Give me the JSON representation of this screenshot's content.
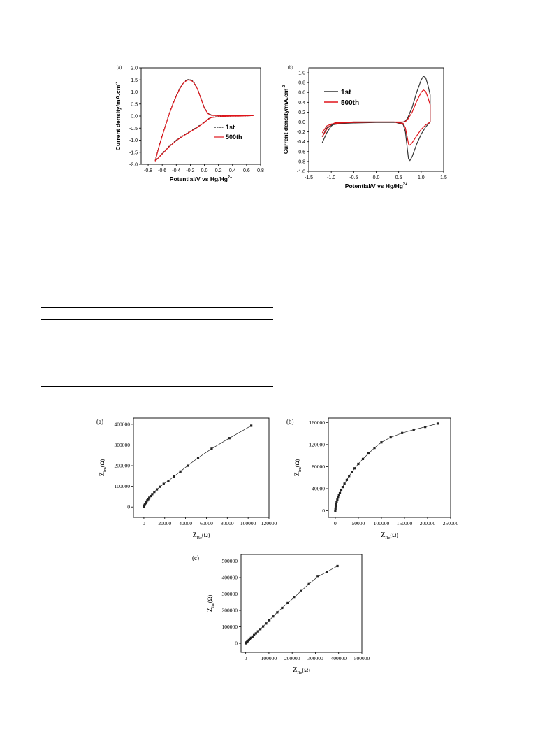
{
  "chart_data": [
    {
      "id": "cv_a",
      "type": "line",
      "panel_label": "(a)",
      "xlabel": "Potential/V vs Hg/Hg",
      "xlabel_sup": "2+",
      "ylabel": "Current density/mA.cm",
      "ylabel_sup": "-2",
      "xlim": [
        -0.9,
        0.8
      ],
      "ylim": [
        -2.0,
        2.0
      ],
      "x_ticks": [
        -0.8,
        -0.6,
        -0.4,
        -0.2,
        0.0,
        0.2,
        0.4,
        0.6,
        0.8
      ],
      "x_tick_labels": [
        "-0.8",
        "-0.6",
        "-0.4",
        "-0.2",
        "0.0",
        "0.2",
        "0.4",
        "0.6",
        "0.8"
      ],
      "y_ticks": [
        -2.0,
        -1.5,
        -1.0,
        -0.5,
        0.0,
        0.5,
        1.0,
        1.5,
        2.0
      ],
      "y_tick_labels": [
        "-2.0",
        "-1.5",
        "-1.0",
        "-0.5",
        "0.0",
        "0.5",
        "1.0",
        "1.5",
        "2.0"
      ],
      "legend_position": "right-middle",
      "series": [
        {
          "name": "1st",
          "color": "#222222",
          "dash": "2,1.5",
          "x": [
            -0.7,
            -0.65,
            -0.6,
            -0.55,
            -0.5,
            -0.45,
            -0.4,
            -0.35,
            -0.3,
            -0.25,
            -0.22,
            -0.18,
            -0.15,
            -0.1,
            -0.05,
            0.0,
            0.05,
            0.1,
            0.2,
            0.3,
            0.4,
            0.5,
            0.6,
            0.7,
            0.6,
            0.5,
            0.4,
            0.3,
            0.2,
            0.1,
            0.05,
            0.0,
            -0.05,
            -0.1,
            -0.2,
            -0.3,
            -0.4,
            -0.5,
            -0.6,
            -0.7
          ],
          "y": [
            -1.85,
            -1.3,
            -0.8,
            -0.35,
            0.1,
            0.5,
            0.85,
            1.15,
            1.38,
            1.5,
            1.52,
            1.48,
            1.4,
            1.15,
            0.75,
            0.35,
            0.12,
            0.04,
            0.02,
            0.02,
            0.02,
            0.02,
            0.02,
            0.02,
            0.01,
            0.0,
            0.0,
            -0.01,
            -0.02,
            -0.05,
            -0.12,
            -0.25,
            -0.35,
            -0.45,
            -0.63,
            -0.8,
            -1.0,
            -1.25,
            -1.55,
            -1.85
          ]
        },
        {
          "name": "500th",
          "color": "#e0141a",
          "dash": "",
          "x": [
            -0.7,
            -0.65,
            -0.6,
            -0.55,
            -0.5,
            -0.45,
            -0.4,
            -0.35,
            -0.3,
            -0.25,
            -0.22,
            -0.18,
            -0.15,
            -0.1,
            -0.05,
            0.0,
            0.05,
            0.1,
            0.2,
            0.3,
            0.4,
            0.5,
            0.6,
            0.7,
            0.6,
            0.5,
            0.4,
            0.3,
            0.2,
            0.1,
            0.05,
            0.0,
            -0.05,
            -0.1,
            -0.2,
            -0.3,
            -0.4,
            -0.5,
            -0.6,
            -0.7
          ],
          "y": [
            -1.87,
            -1.32,
            -0.82,
            -0.37,
            0.08,
            0.48,
            0.83,
            1.13,
            1.36,
            1.48,
            1.5,
            1.46,
            1.38,
            1.13,
            0.73,
            0.33,
            0.1,
            0.03,
            0.02,
            0.02,
            0.02,
            0.02,
            0.02,
            0.02,
            0.01,
            0.0,
            0.0,
            -0.01,
            -0.03,
            -0.06,
            -0.14,
            -0.27,
            -0.37,
            -0.47,
            -0.65,
            -0.82,
            -1.02,
            -1.27,
            -1.57,
            -1.87
          ]
        }
      ]
    },
    {
      "id": "cv_b",
      "type": "line",
      "panel_label": "(b)",
      "xlabel": "Potential/V vs Hg/Hg",
      "xlabel_sup": "2+",
      "ylabel": "Current density/mA.cm",
      "ylabel_sup": "-2",
      "xlim": [
        -1.5,
        1.5
      ],
      "ylim": [
        -1.0,
        1.1
      ],
      "x_ticks": [
        -1.5,
        -1.0,
        -0.5,
        0.0,
        0.5,
        1.0,
        1.5
      ],
      "x_tick_labels": [
        "-1.5",
        "-1.0",
        "-0.5",
        "0.0",
        "0.5",
        "1.0",
        "1.5"
      ],
      "y_ticks": [
        -1.0,
        -0.8,
        -0.6,
        -0.4,
        -0.2,
        0.0,
        0.2,
        0.4,
        0.6,
        0.8,
        1.0
      ],
      "y_tick_labels": [
        "-1.0",
        "-0.8",
        "-0.6",
        "-0.4",
        "-0.2",
        "0.0",
        "0.2",
        "0.4",
        "0.6",
        "0.8",
        "1.0"
      ],
      "legend_position": "top-left",
      "series": [
        {
          "name": "1st",
          "color": "#333333",
          "dash": "",
          "x": [
            -1.2,
            -1.1,
            -1.0,
            -0.8,
            -0.5,
            0.0,
            0.3,
            0.5,
            0.6,
            0.65,
            0.7,
            0.8,
            0.9,
            1.0,
            1.05,
            1.1,
            1.15,
            1.2,
            1.2,
            1.1,
            1.0,
            0.9,
            0.8,
            0.75,
            0.72,
            0.7,
            0.65,
            0.6,
            0.4,
            0.0,
            -0.5,
            -0.9,
            -1.0,
            -1.1,
            -1.2
          ],
          "y": [
            -0.3,
            -0.12,
            -0.06,
            -0.03,
            -0.02,
            -0.01,
            -0.01,
            -0.01,
            0.0,
            0.02,
            0.08,
            0.3,
            0.6,
            0.85,
            0.93,
            0.9,
            0.75,
            0.55,
            0.0,
            -0.1,
            -0.25,
            -0.45,
            -0.7,
            -0.78,
            -0.75,
            -0.6,
            -0.2,
            -0.05,
            0.0,
            0.0,
            0.0,
            -0.02,
            -0.08,
            -0.22,
            -0.42
          ]
        },
        {
          "name": "500th",
          "color": "#e0141a",
          "dash": "",
          "x": [
            -1.2,
            -1.1,
            -1.0,
            -0.8,
            -0.5,
            0.0,
            0.3,
            0.5,
            0.6,
            0.65,
            0.7,
            0.8,
            0.9,
            1.0,
            1.05,
            1.1,
            1.15,
            1.2,
            1.2,
            1.1,
            1.0,
            0.9,
            0.8,
            0.75,
            0.72,
            0.7,
            0.65,
            0.6,
            0.4,
            0.0,
            -0.5,
            -0.9,
            -1.0,
            -1.1,
            -1.2
          ],
          "y": [
            -0.22,
            -0.08,
            -0.04,
            -0.02,
            -0.01,
            0.0,
            0.0,
            0.0,
            0.0,
            0.01,
            0.05,
            0.2,
            0.42,
            0.6,
            0.65,
            0.62,
            0.5,
            0.35,
            0.0,
            -0.06,
            -0.15,
            -0.28,
            -0.42,
            -0.47,
            -0.45,
            -0.35,
            -0.12,
            -0.03,
            0.0,
            0.0,
            0.0,
            -0.01,
            -0.05,
            -0.15,
            -0.3
          ]
        }
      ]
    },
    {
      "id": "eis_a",
      "type": "scatter",
      "panel_label": "(a)",
      "xlabel": "Z",
      "xlabel_sub": "Re",
      "xlabel_unit": "(Ω)",
      "ylabel": "Z",
      "ylabel_sub": "im",
      "ylabel_unit": "(Ω)",
      "xlim": [
        -10000,
        120000
      ],
      "ylim": [
        -50000,
        430000
      ],
      "x_ticks": [
        0,
        20000,
        40000,
        60000,
        80000,
        100000,
        120000
      ],
      "x_tick_labels": [
        "0",
        "20000",
        "40000",
        "60000",
        "80000",
        "100000",
        "120000"
      ],
      "y_ticks": [
        0,
        100000,
        200000,
        300000,
        400000
      ],
      "y_tick_labels": [
        "0",
        "100000",
        "200000",
        "300000",
        "400000"
      ],
      "series": [
        {
          "name": "",
          "color": "#222222",
          "x": [
            0,
            300,
            700,
            1200,
            1800,
            2500,
            3300,
            4200,
            5200,
            6500,
            8000,
            10000,
            12500,
            15500,
            19000,
            23500,
            29000,
            35000,
            42000,
            52000,
            65000,
            82000,
            103000
          ],
          "y": [
            0,
            5000,
            10000,
            15000,
            20000,
            26000,
            32000,
            38000,
            45000,
            53000,
            62000,
            73000,
            85000,
            98000,
            112000,
            127000,
            148000,
            172000,
            200000,
            238000,
            282000,
            333000,
            393000
          ]
        }
      ]
    },
    {
      "id": "eis_b",
      "type": "scatter",
      "panel_label": "(b)",
      "xlabel": "Z",
      "xlabel_sub": "Re",
      "xlabel_unit": "(Ω)",
      "ylabel": "Z",
      "ylabel_sub": "im",
      "ylabel_unit": "(Ω)",
      "xlim": [
        -15000,
        250000
      ],
      "ylim": [
        -12000,
        168000
      ],
      "x_ticks": [
        0,
        50000,
        100000,
        150000,
        200000,
        250000
      ],
      "x_tick_labels": [
        "0",
        "50000",
        "100000",
        "150000",
        "200000",
        "250000"
      ],
      "y_ticks": [
        0,
        40000,
        80000,
        120000,
        160000
      ],
      "y_tick_labels": [
        "0",
        "40000",
        "80000",
        "120000",
        "160000"
      ],
      "series": [
        {
          "name": "",
          "color": "#222222",
          "x": [
            0,
            500,
            1000,
            2000,
            3000,
            4500,
            6000,
            8000,
            10000,
            13000,
            16000,
            20000,
            25000,
            30000,
            36000,
            42000,
            50000,
            60000,
            72000,
            85000,
            100000,
            120000,
            145000,
            170000,
            195000,
            222000
          ],
          "y": [
            0,
            4000,
            8000,
            12000,
            16000,
            20000,
            24000,
            28000,
            33000,
            38000,
            43000,
            49000,
            56000,
            63000,
            70000,
            77000,
            85000,
            94000,
            104000,
            114000,
            124000,
            133000,
            141000,
            147000,
            152000,
            158000
          ]
        }
      ]
    },
    {
      "id": "eis_c",
      "type": "scatter",
      "panel_label": "(c)",
      "xlabel": "Z",
      "xlabel_sub": "Re",
      "xlabel_unit": "(Ω)",
      "ylabel": "Z",
      "ylabel_sub": "im",
      "ylabel_unit": "(Ω)",
      "xlim": [
        -20000,
        500000
      ],
      "ylim": [
        -55000,
        540000
      ],
      "x_ticks": [
        0,
        100000,
        200000,
        300000,
        400000,
        500000
      ],
      "x_tick_labels": [
        "0",
        "100000",
        "200000",
        "300000",
        "400000",
        "500000"
      ],
      "y_ticks": [
        0,
        100000,
        200000,
        300000,
        400000,
        500000
      ],
      "y_tick_labels": [
        "0",
        "100000",
        "200000",
        "300000",
        "400000",
        "500000"
      ],
      "series": [
        {
          "name": "",
          "color": "#222222",
          "x": [
            0,
            2000,
            4000,
            7000,
            10000,
            14000,
            18000,
            23000,
            29000,
            36000,
            44000,
            53000,
            63000,
            75000,
            88000,
            102000,
            118000,
            136000,
            157000,
            181000,
            208000,
            238000,
            272000,
            310000,
            350000,
            395000
          ],
          "y": [
            0,
            3000,
            6000,
            10000,
            15000,
            20000,
            26000,
            33000,
            41000,
            50000,
            60000,
            72000,
            86000,
            102000,
            120000,
            140000,
            163000,
            188000,
            215000,
            245000,
            278000,
            318000,
            360000,
            405000,
            435000,
            470000
          ]
        }
      ]
    }
  ]
}
